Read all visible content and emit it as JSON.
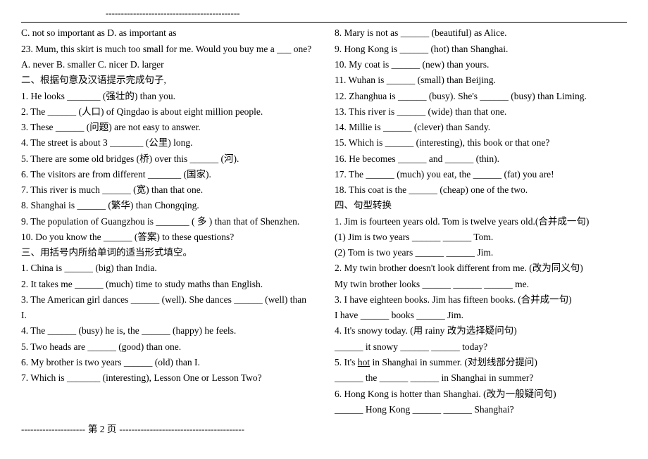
{
  "top_dashes": "--------------------------------------------",
  "left": [
    "C. not so important as     D. as important as",
    "23. Mum, this skirt is much too small for me. Would you buy me a ___ one?",
    "A. never    B. smaller    C. nicer    D. larger",
    "二、根据句意及汉语提示完成句子,",
    "1. He looks _______ (强壮的) than you.",
    "2. The ______ (人口) of Qingdao is about eight million people.",
    "3. These ______ (问题) are not easy to answer.",
    "4. The street is about 3 _______ (公里) long.",
    "5. There are some old bridges (桥) over this ______ (河).",
    "6. The visitors are from different _______ (国家).",
    "7. This river is much ______ (宽) than that one.",
    "8. Shanghai is ______ (繁华) than Chongqing.",
    "9. The population of Guangzhou is _______ ( 多 ) than that of Shenzhen.",
    "10. Do you know the ______ (答案) to these questions?",
    "三、用括号内所给单词的适当形式填空。",
    "1. China is ______ (big) than India.",
    "2. It takes me ______ (much) time to study maths than English.",
    "3. The American girl dances ______ (well). She dances ______ (well) than I.",
    "4. The ______ (busy) he is, the ______ (happy) he feels.",
    "5. Two heads are ______ (good) than one.",
    "6. My brother is two years ______ (old) than I.",
    "7. Which is _______ (interesting), Lesson One or Lesson Two?"
  ],
  "right": [
    "8. Mary is not as ______ (beautiful) as Alice.",
    "9. Hong Kong is ______ (hot) than Shanghai.",
    "10. My coat is ______ (new) than yours.",
    "11. Wuhan is ______ (small) than Beijing.",
    "12. Zhanghua is ______ (busy). She's ______ (busy) than Liming.",
    "13. This river is ______ (wide) than that one.",
    "14. Millie is ______ (clever) than Sandy.",
    "15. Which is ______ (interesting), this book or that one?",
    "16. He becomes ______ and ______ (thin).",
    "17. The ______ (much) you eat, the ______ (fat) you are!",
    "18. This coat is the ______ (cheap) one of the two.",
    "四、句型转换",
    "1. Jim is fourteen years old. Tom is twelve years old.(合并成一句)",
    "(1) Jim is two years ______ ______ Tom.",
    "(2) Tom is two years ______ ______ Jim.",
    "2. My twin brother doesn't look different from me. (改为同义句)",
    "My twin brother looks ______ ______ ______ me.",
    "3. I have eighteen books. Jim has fifteen books. (合并成一句)",
    "I have ______ books ______ Jim.",
    "4. It's snowy today. (用 rainy 改为选择疑问句)",
    "______ it snowy ______ ______ today?"
  ],
  "right_underlined": {
    "prefix": "5. It's ",
    "underlined": "hot",
    "suffix": " in Shanghai in summer. (对划线部分提问)"
  },
  "right_tail": [
    "______ the ______ ______ in Shanghai in summer?",
    "6. Hong Kong is hotter than Shanghai. (改为一般疑问句)",
    "______ Hong Kong ______ ______ Shanghai?"
  ],
  "footer": {
    "left_dashes": "---------------------",
    "page_label": "第  2  页",
    "right_dashes": "-----------------------------------------"
  }
}
